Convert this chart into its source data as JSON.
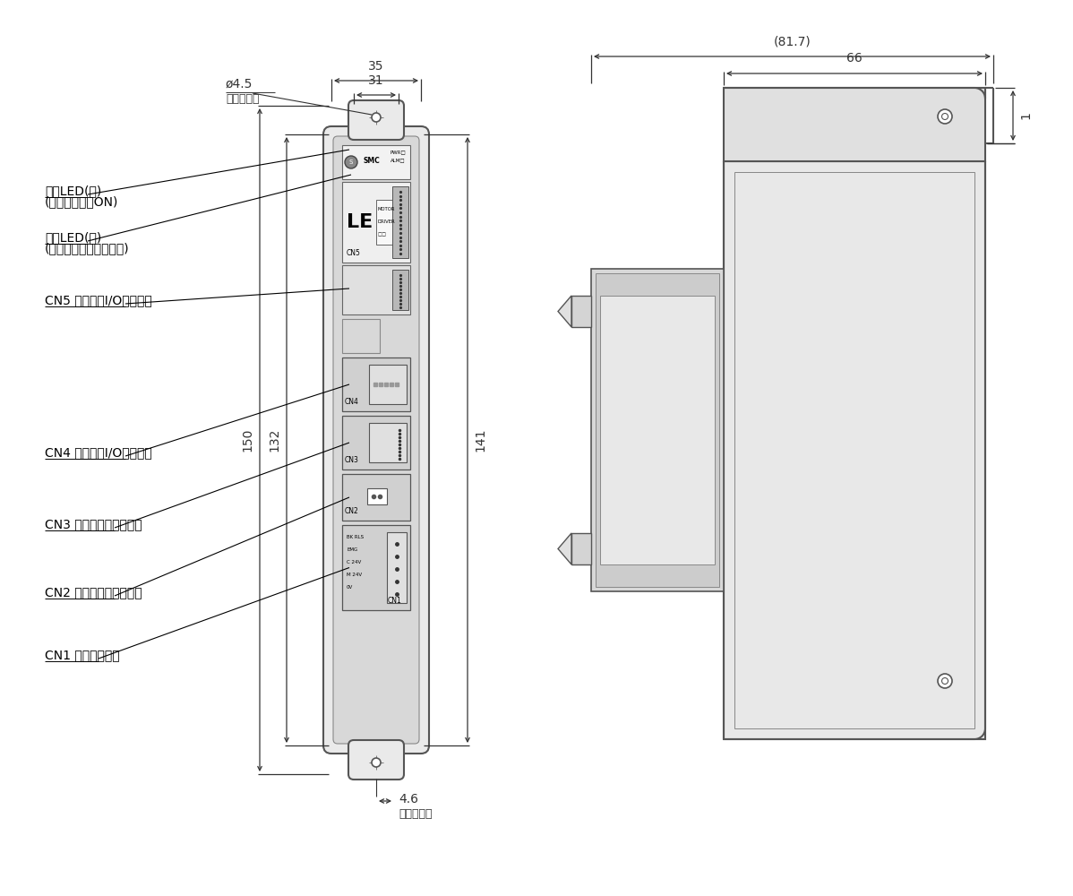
{
  "bg": "#ffffff",
  "gray_body": "#e8e8e8",
  "gray_inner": "#d4d4d4",
  "gray_comp": "#c0c0c0",
  "edge": "#444444",
  "dim_color": "#333333",
  "labels": {
    "led_green_1": "電源LED(緑)",
    "led_green_2": "(点灯時　電源ON)",
    "led_red_1": "電源LED(赤)",
    "led_red_2": "(点灯時　アラーム状態)",
    "cn5": "CN5 パラレルI/Oコネクタ",
    "cn4": "CN4 シリアルI/Oコネクタ",
    "cn3": "CN3 エンコーダコネクタ",
    "cn2": "CN2 モータ動力コネクタ",
    "cn1": "CN1 電源コネクタ",
    "phi45": "ø4.5",
    "honbody": "本体取付用",
    "d35": "35",
    "d31": "31",
    "d150": "150",
    "d132": "132",
    "d141": "141",
    "d46": "4.6",
    "d817": "(81.7)",
    "d66": "66",
    "d1": "1"
  },
  "front": {
    "BL": 370,
    "BR": 470,
    "BT": 850,
    "BB": 168,
    "TW": 50,
    "TH": 32
  },
  "side": {
    "PL": 790,
    "PR": 1080,
    "PT": 840,
    "PB": 175,
    "FL": 710,
    "FT": 920,
    "FB": 175,
    "LipW": 9,
    "TopFlangeH": 80,
    "CL": 716,
    "CR": 790,
    "CT": 710,
    "CBt": 330
  }
}
